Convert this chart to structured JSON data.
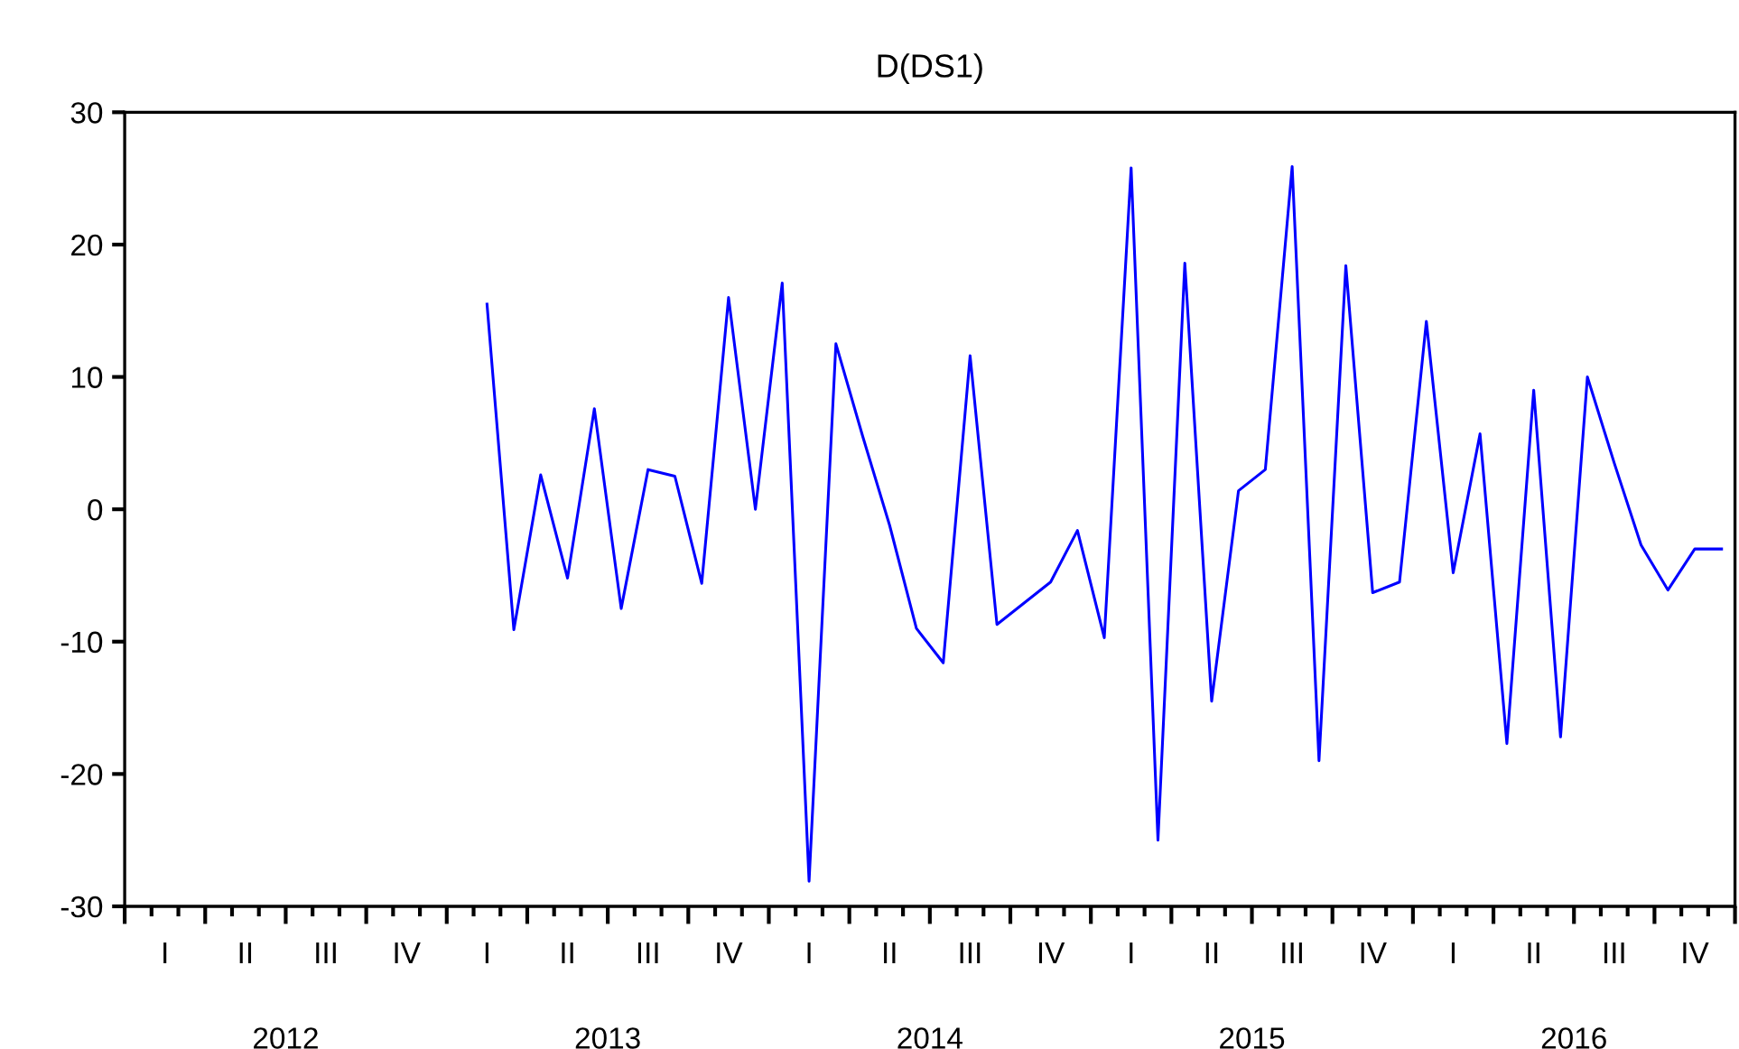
{
  "chart_data": {
    "type": "line",
    "title": "D(DS1)",
    "categories": [
      null,
      "I",
      null,
      null,
      "II",
      null,
      null,
      "III",
      null,
      null,
      "IV",
      null,
      null,
      "I",
      null,
      null,
      "II",
      null,
      null,
      "III",
      null,
      null,
      "IV",
      null,
      null,
      "I",
      null,
      null,
      "II",
      null,
      null,
      "III",
      null,
      null,
      "IV",
      null,
      null,
      "I",
      null,
      null,
      "II",
      null,
      null,
      "III",
      null,
      null,
      "IV",
      null,
      null,
      "I",
      null,
      null,
      "II",
      null,
      null,
      "III",
      null,
      null,
      "IV",
      null
    ],
    "series": [
      {
        "color": "#0000ff",
        "values": [
          null,
          null,
          null,
          null,
          null,
          null,
          null,
          null,
          null,
          null,
          null,
          null,
          null,
          15.5,
          -9.1,
          2.6,
          -5.2,
          7.6,
          -7.5,
          3.0,
          2.5,
          -5.6,
          16.0,
          0.0,
          17.1,
          -28.1,
          12.5,
          5.5,
          -1.2,
          -9.0,
          -11.6,
          11.6,
          -8.7,
          -7.1,
          -5.5,
          -1.6,
          -9.7,
          25.8,
          -25.0,
          18.6,
          -14.5,
          1.4,
          3.0,
          25.9,
          -19.0,
          18.4,
          -6.3,
          -5.5,
          14.2,
          -4.8,
          5.7,
          -17.7,
          9.0,
          -17.2,
          10.0,
          3.5,
          -2.7,
          -6.1,
          -3.0,
          -3.0
        ]
      }
    ],
    "annotations": [
      "2012",
      "2013",
      "2014",
      "2015",
      "2016"
    ],
    "ylim": [
      -30,
      30
    ],
    "yticks": [
      -30,
      -20,
      -10,
      0,
      10,
      20,
      30
    ],
    "grid": false,
    "marker": "none",
    "line_style": "solid"
  }
}
